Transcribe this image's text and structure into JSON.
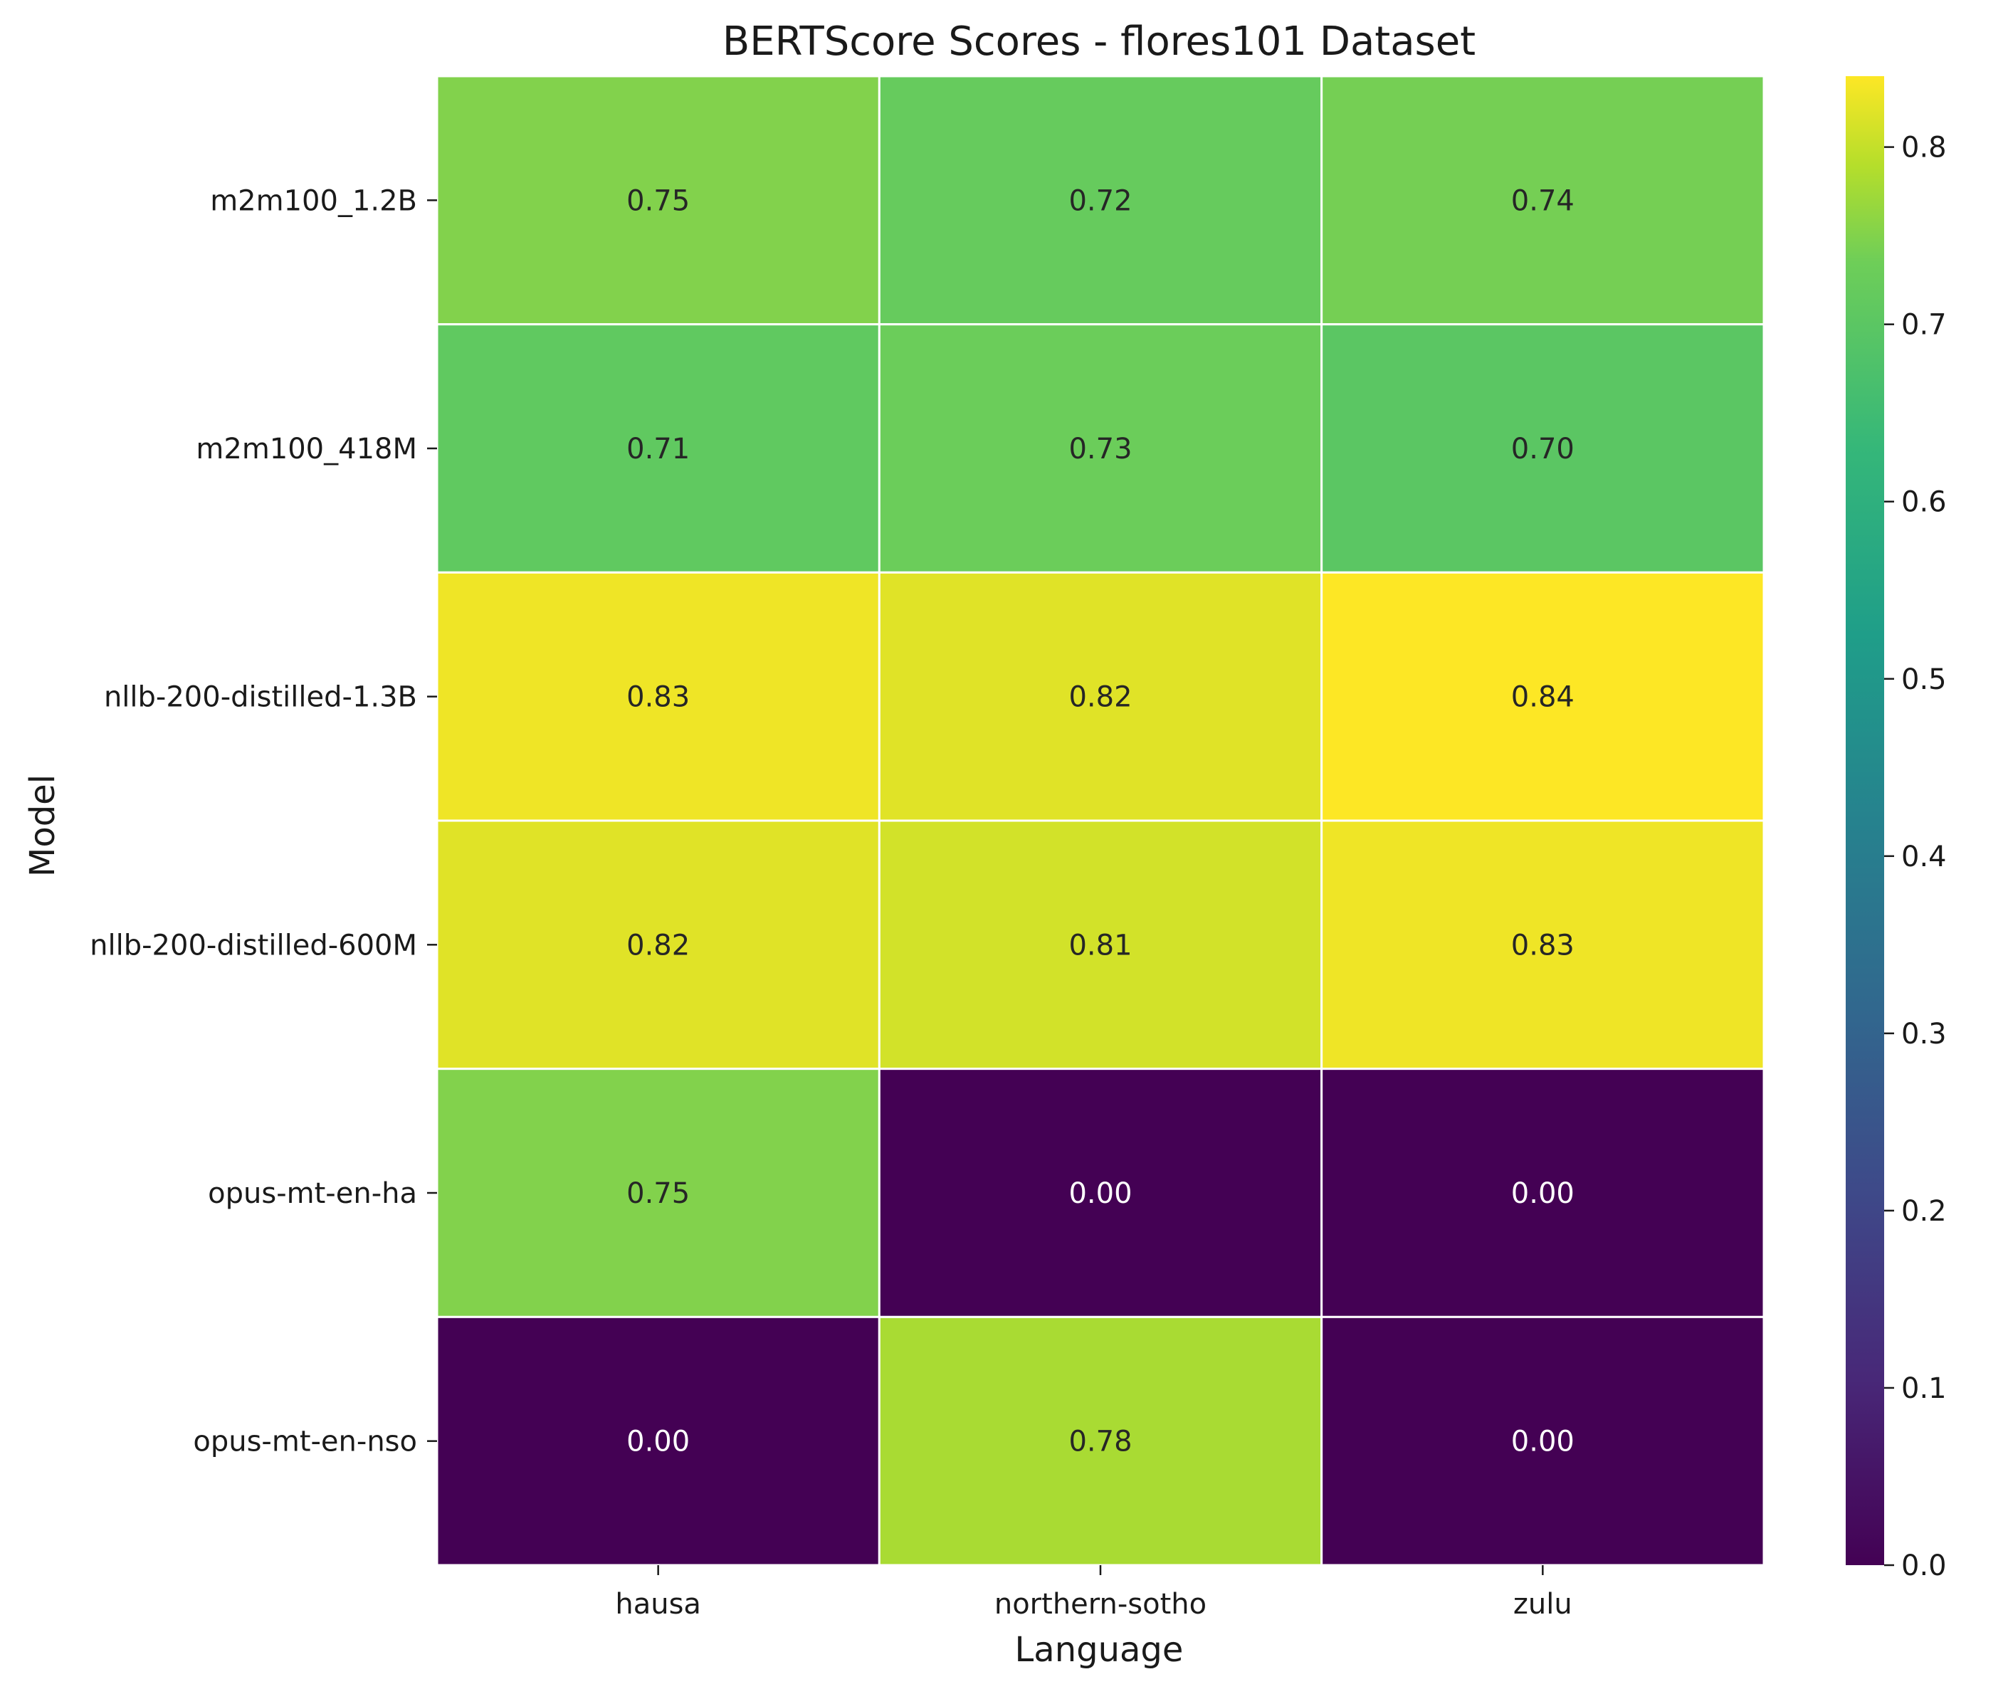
{
  "chart_data": {
    "type": "heatmap",
    "title": "BERTScore Scores - flores101 Dataset",
    "xlabel": "Language",
    "ylabel": "Model",
    "x_categories": [
      "hausa",
      "northern-sotho",
      "zulu"
    ],
    "y_categories": [
      "m2m100_1.2B",
      "m2m100_418M",
      "nllb-200-distilled-1.3B",
      "nllb-200-distilled-600M",
      "opus-mt-en-ha",
      "opus-mt-en-nso"
    ],
    "values": [
      [
        0.75,
        0.72,
        0.74
      ],
      [
        0.71,
        0.73,
        0.7
      ],
      [
        0.83,
        0.82,
        0.84
      ],
      [
        0.82,
        0.81,
        0.83
      ],
      [
        0.75,
        0.0,
        0.0
      ],
      [
        0.0,
        0.78,
        0.0
      ]
    ],
    "cell_labels": [
      [
        "0.75",
        "0.72",
        "0.74"
      ],
      [
        "0.71",
        "0.73",
        "0.70"
      ],
      [
        "0.83",
        "0.82",
        "0.84"
      ],
      [
        "0.82",
        "0.81",
        "0.83"
      ],
      [
        "0.75",
        "0.00",
        "0.00"
      ],
      [
        "0.00",
        "0.78",
        "0.00"
      ]
    ],
    "colormap": "viridis",
    "vmin": 0.0,
    "vmax": 0.84,
    "colorbar_ticks": [
      "0.0",
      "0.1",
      "0.2",
      "0.3",
      "0.4",
      "0.5",
      "0.6",
      "0.7",
      "0.8"
    ],
    "cell_border_color": "#ffffff",
    "grid": false,
    "legend": "colorbar-right"
  }
}
